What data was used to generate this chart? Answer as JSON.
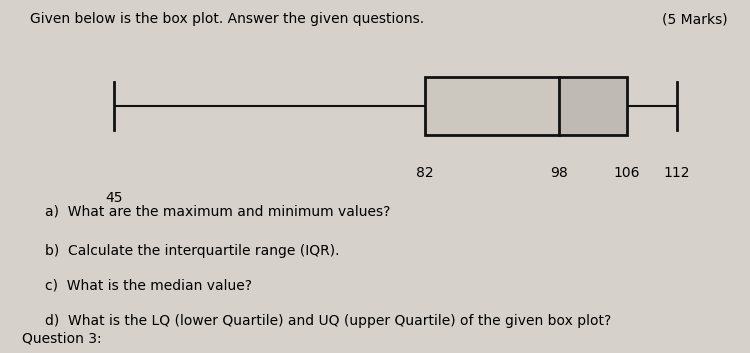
{
  "title": "Given below is the box plot. Answer the given questions.",
  "title_right": "(5 Marks)",
  "min_val": 45,
  "q1": 82,
  "median": 98,
  "q3": 106,
  "max_val": 112,
  "questions": [
    "a)  What are the maximum and minimum values?",
    "b)  Calculate the interquartile range (IQR).",
    "c)  What is the median value?",
    "d)  What is the LQ (lower Quartile) and UQ (upper Quartile) of the given box plot?"
  ],
  "footer": "Question 3:",
  "bg_color": "#d6d2cb",
  "box_fill_left": "#ccc8c0",
  "box_fill_right": "#bfbbb4",
  "box_edge": "#111111",
  "whisker_color": "#111111",
  "label_fontsize": 10,
  "title_fontsize": 10,
  "question_fontsize": 10,
  "xlim_left": 35,
  "xlim_right": 118
}
